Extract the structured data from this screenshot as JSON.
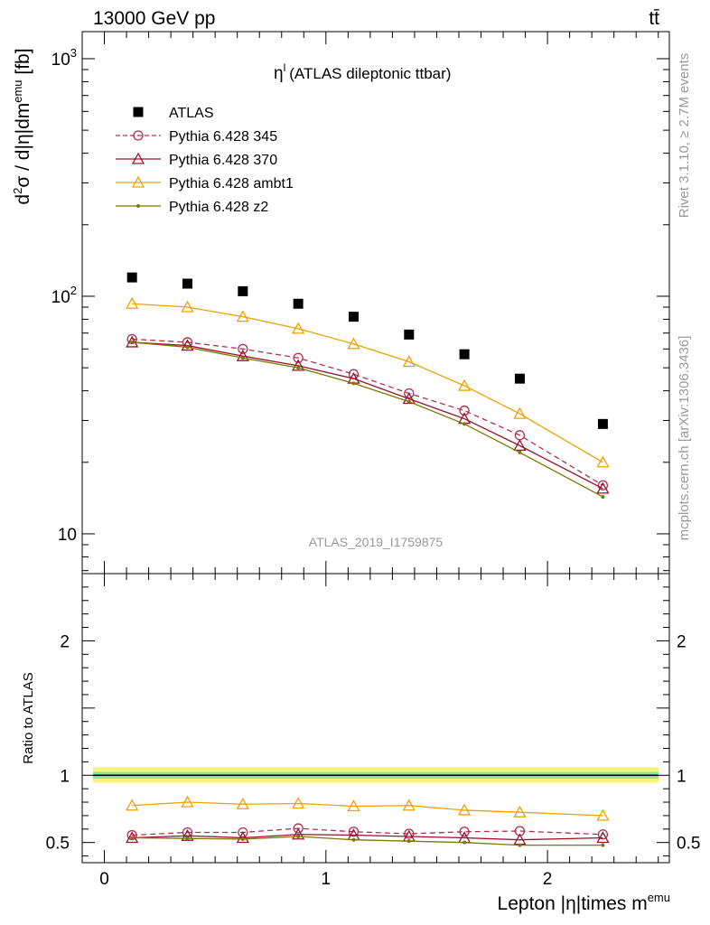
{
  "header": {
    "left": "13000 GeV pp",
    "right": "tt̄"
  },
  "side_text": {
    "rivet": "Rivet 3.1.10, ≥ 2.7M events",
    "source": "mcplots.cern.ch [arXiv:1306.3436]"
  },
  "chart_data": [
    {
      "type": "scatter",
      "panel": "main",
      "title": "η^l (ATLAS dileptonic ttbar)",
      "title_main": "η",
      "title_sup": "l",
      "title_rest": "(ATLAS dileptonic ttbar)",
      "watermark": "ATLAS_2019_I1759875",
      "ylabel": "d²σ / d|η|dm^emu [fb]",
      "ylabel_parts": [
        "d",
        "2",
        "σ / d|η|dm",
        "emu",
        " [fb]"
      ],
      "yscale": "log",
      "ylim": [
        6.8,
        1300
      ],
      "xlim": [
        -0.1,
        2.55
      ],
      "ytick_labels": [
        "10",
        "10",
        "10"
      ],
      "ytick_sups": [
        "",
        "2",
        "3"
      ],
      "ytick_values": [
        10,
        100,
        1000
      ],
      "legend_position": "top-left",
      "x": [
        0.125,
        0.375,
        0.625,
        0.875,
        1.125,
        1.375,
        1.625,
        1.875,
        2.25
      ],
      "series": [
        {
          "name": "ATLAS",
          "color": "#000000",
          "marker": "square",
          "line": "none",
          "values": [
            120,
            113,
            105,
            93,
            82,
            69,
            57,
            45,
            29
          ]
        },
        {
          "name": "Pythia 6.428 345",
          "color": "#b03050",
          "marker": "circle",
          "line": "dashed",
          "values": [
            66,
            64,
            60,
            55,
            47,
            39,
            33,
            26,
            16
          ]
        },
        {
          "name": "Pythia 6.428 370",
          "color": "#9b1030",
          "marker": "triangle",
          "line": "solid",
          "values": [
            64,
            62,
            56,
            51,
            45,
            37,
            30.5,
            23.5,
            15.5
          ]
        },
        {
          "name": "Pythia 6.428 ambt1",
          "color": "#f0a000",
          "marker": "triangle",
          "line": "solid",
          "values": [
            93,
            90,
            82,
            73,
            63,
            53,
            42,
            32,
            20
          ]
        },
        {
          "name": "Pythia 6.428 z2",
          "color": "#7a7a00",
          "marker": "dot",
          "line": "solid",
          "values": [
            64,
            61,
            55,
            50,
            43,
            36,
            29,
            22,
            14.3
          ]
        }
      ]
    },
    {
      "type": "line",
      "panel": "ratio",
      "ylabel": "Ratio to ATLAS",
      "xlabel": "Lepton |η|times m^emu",
      "xlabel_main": "Lepton |η|times m",
      "xlabel_sup": "emu",
      "ylim": [
        0.35,
        2.5
      ],
      "xlim": [
        -0.1,
        2.55
      ],
      "xtick_labels": [
        "0",
        "1",
        "2"
      ],
      "xtick_values": [
        0,
        1,
        2
      ],
      "ytick_labels": [
        "0.5",
        "1",
        "2"
      ],
      "ytick_values": [
        0.5,
        1,
        2
      ],
      "reference_band": {
        "center": 1.0,
        "inner": [
          0.975,
          1.025
        ],
        "outer": [
          0.945,
          1.06
        ]
      },
      "x": [
        0.125,
        0.375,
        0.625,
        0.875,
        1.125,
        1.375,
        1.625,
        1.875,
        2.25
      ],
      "series": [
        {
          "name": "Pythia 6.428 345",
          "color": "#b03050",
          "marker": "circle",
          "line": "dashed",
          "values": [
            0.555,
            0.575,
            0.575,
            0.605,
            0.58,
            0.565,
            0.58,
            0.585,
            0.56
          ]
        },
        {
          "name": "Pythia 6.428 370",
          "color": "#9b1030",
          "marker": "triangle",
          "line": "solid",
          "values": [
            0.535,
            0.55,
            0.535,
            0.56,
            0.555,
            0.545,
            0.535,
            0.52,
            0.535
          ]
        },
        {
          "name": "Pythia 6.428 ambt1",
          "color": "#f0a000",
          "marker": "triangle",
          "line": "solid",
          "values": [
            0.775,
            0.8,
            0.785,
            0.79,
            0.77,
            0.775,
            0.74,
            0.725,
            0.7
          ]
        },
        {
          "name": "Pythia 6.428 z2",
          "color": "#7a7a00",
          "marker": "dot",
          "line": "solid",
          "values": [
            0.535,
            0.53,
            0.525,
            0.545,
            0.52,
            0.51,
            0.5,
            0.48,
            0.48
          ]
        }
      ]
    }
  ]
}
